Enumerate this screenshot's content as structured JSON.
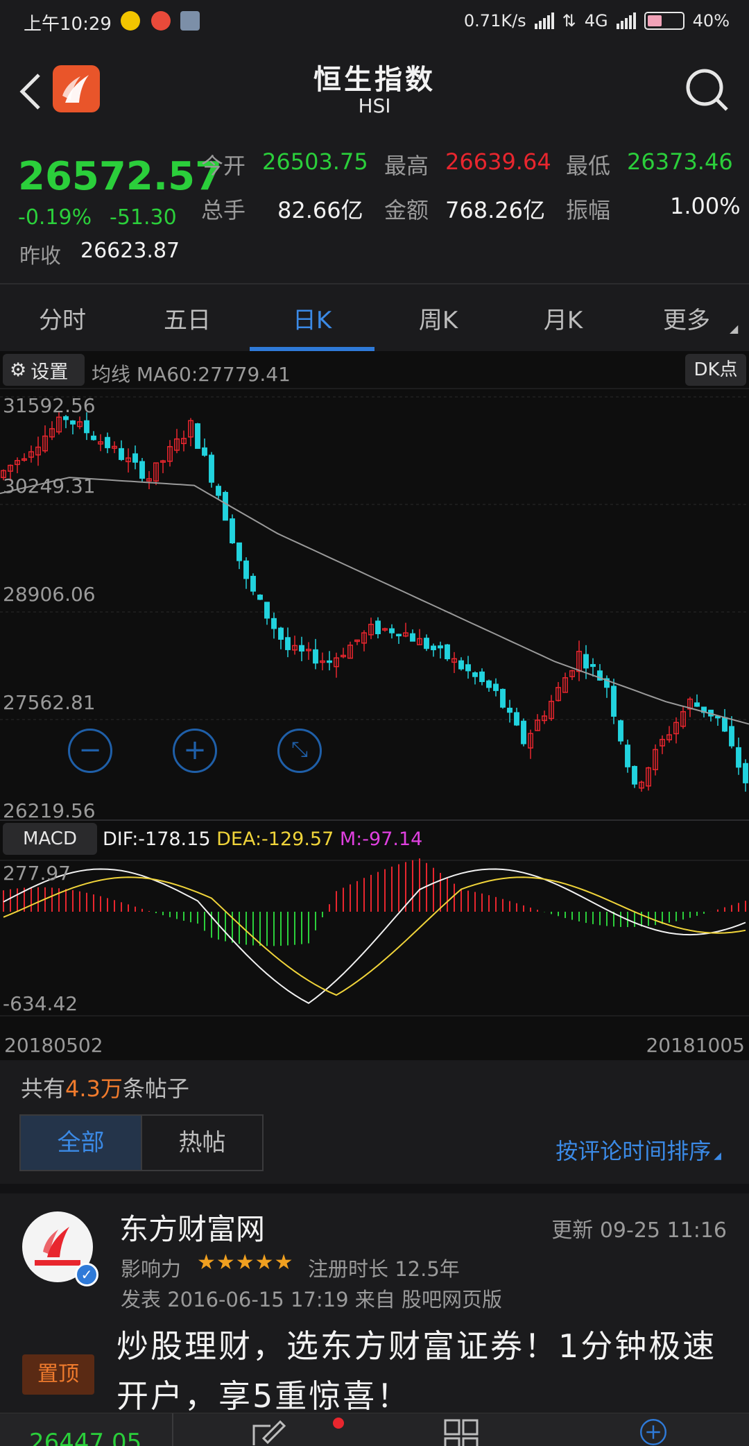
{
  "status_bar": {
    "time": "上午10:29",
    "speed": "0.71K/s",
    "network": "4G",
    "battery": "40%"
  },
  "header": {
    "title": "恒生指数",
    "subtitle": "HSI"
  },
  "quote": {
    "price": "26572.57",
    "change_pct": "-0.19%",
    "change_val": "-51.30",
    "prev_close_label": "昨收",
    "prev_close": "26623.87",
    "open_label": "今开",
    "open": "26503.75",
    "high_label": "最高",
    "high": "26639.64",
    "low_label": "最低",
    "low": "26373.46",
    "volume_label": "总手",
    "volume": "82.66亿",
    "amount_label": "金额",
    "amount": "768.26亿",
    "amplitude_label": "振幅",
    "amplitude": "1.00%"
  },
  "tabs": [
    {
      "label": "分时"
    },
    {
      "label": "五日"
    },
    {
      "label": "日K"
    },
    {
      "label": "周K"
    },
    {
      "label": "月K"
    },
    {
      "label": "更多"
    }
  ],
  "chart": {
    "settings_label": "设置",
    "ma_label": "均线 MA60:27779.41",
    "dk_label": "DK点",
    "y_labels": [
      "31592.56",
      "30249.31",
      "28906.06",
      "27562.81",
      "26219.56"
    ],
    "macd_label": "MACD",
    "dif": "DIF:-178.15",
    "dea": "DEA:-129.57",
    "m": "M:-97.14",
    "macd_max": "277.97",
    "macd_min": "-634.42",
    "date_start": "20180502",
    "date_end": "20181005"
  },
  "chart_data": {
    "type": "candlestick",
    "x_range": [
      "20180502",
      "20181005"
    ],
    "ylim": [
      26219.56,
      31592.56
    ],
    "ma60": 27779.41,
    "macd": {
      "dif": -178.15,
      "dea": -129.57,
      "m": -97.14,
      "ylim": [
        -634.42,
        277.97
      ]
    },
    "colors": {
      "up": "#e8262e",
      "down": "#22d3de",
      "ma": "#9a9a9a"
    }
  },
  "forum": {
    "count_prefix": "共有",
    "count_num": "4.3万",
    "count_suffix": "条帖子",
    "filter_all": "全部",
    "filter_hot": "热帖",
    "sort_label": "按评论时间排序"
  },
  "post": {
    "author": "东方财富网",
    "updated": "更新 09-25 11:16",
    "influence_label": "影响力",
    "stars": "★★★★★",
    "reg": "注册时长 12.5年",
    "published": "发表 2016-06-15 17:19  来自 股吧网页版",
    "pin": "置顶",
    "title": "炒股理财，选东方财富证券！1分钟极速开户，享5重惊喜！"
  },
  "bottom": {
    "price": "26447.05"
  }
}
